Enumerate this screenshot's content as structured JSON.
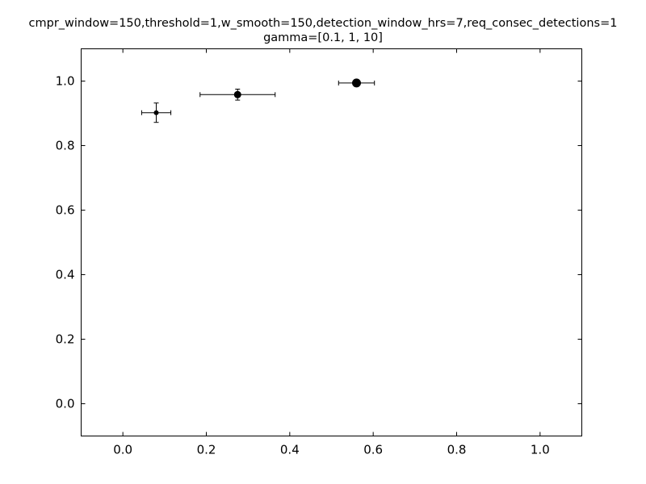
{
  "chart_data": {
    "type": "scatter",
    "title_lines": [
      "cmpr_window=150,threshold=1,w_smooth=150,detection_window_hrs=7,req_consec_detections=1",
      "gamma=[0.1, 1, 10]"
    ],
    "xlabel": "",
    "ylabel": "",
    "xlim": [
      -0.1,
      1.1
    ],
    "ylim": [
      -0.1,
      1.1
    ],
    "xticks": [
      "0.0",
      "0.2",
      "0.4",
      "0.6",
      "0.8",
      "1.0"
    ],
    "yticks": [
      "0.0",
      "0.2",
      "0.4",
      "0.6",
      "0.8",
      "1.0"
    ],
    "grid": false,
    "marker_color": "#000000",
    "points": [
      {
        "x": 0.08,
        "y": 0.902,
        "xerr": 0.035,
        "yerr": 0.03,
        "marker_size": 3
      },
      {
        "x": 0.275,
        "y": 0.958,
        "xerr": 0.09,
        "yerr": 0.017,
        "marker_size": 4.5
      },
      {
        "x": 0.56,
        "y": 0.994,
        "xerr": 0.043,
        "yerr": 0.004,
        "marker_size": 5.5
      }
    ]
  }
}
